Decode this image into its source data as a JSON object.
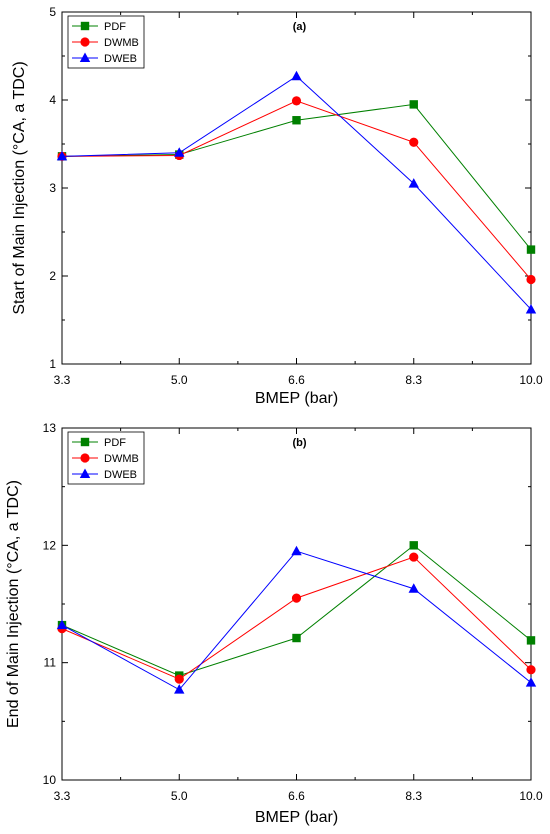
{
  "chart_data": [
    {
      "type": "line",
      "panel_label": "(a)",
      "xlabel": "BMEP (bar)",
      "ylabel": "Start of Main Injection (°CA, a TDC)",
      "categories": [
        "3.3",
        "5.0",
        "6.6",
        "8.3",
        "10.0"
      ],
      "ylim": [
        1,
        5
      ],
      "yticks": [
        "1",
        "2",
        "3",
        "4",
        "5"
      ],
      "legend_position": "top-left",
      "series": [
        {
          "name": "PDF",
          "color": "#008000",
          "marker": "square",
          "values": [
            3.36,
            3.38,
            3.77,
            3.95,
            2.3
          ]
        },
        {
          "name": "DWMB",
          "color": "#ff0000",
          "marker": "circle",
          "values": [
            3.36,
            3.37,
            3.99,
            3.52,
            1.96
          ]
        },
        {
          "name": "DWEB",
          "color": "#0000ff",
          "marker": "triangle",
          "values": [
            3.36,
            3.4,
            4.27,
            3.05,
            1.62
          ]
        }
      ]
    },
    {
      "type": "line",
      "panel_label": "(b)",
      "xlabel": "BMEP (bar)",
      "ylabel": "End of Main Injection (°CA, a TDC)",
      "categories": [
        "3.3",
        "5.0",
        "6.6",
        "8.3",
        "10.0"
      ],
      "ylim": [
        10,
        13
      ],
      "yticks": [
        "10",
        "11",
        "12",
        "13"
      ],
      "legend_position": "top-left",
      "series": [
        {
          "name": "PDF",
          "color": "#008000",
          "marker": "square",
          "values": [
            11.32,
            10.89,
            11.21,
            12.0,
            11.19
          ]
        },
        {
          "name": "DWMB",
          "color": "#ff0000",
          "marker": "circle",
          "values": [
            11.29,
            10.86,
            11.55,
            11.9,
            10.94
          ]
        },
        {
          "name": "DWEB",
          "color": "#0000ff",
          "marker": "triangle",
          "values": [
            11.32,
            10.77,
            11.95,
            11.63,
            10.83
          ]
        }
      ]
    }
  ]
}
